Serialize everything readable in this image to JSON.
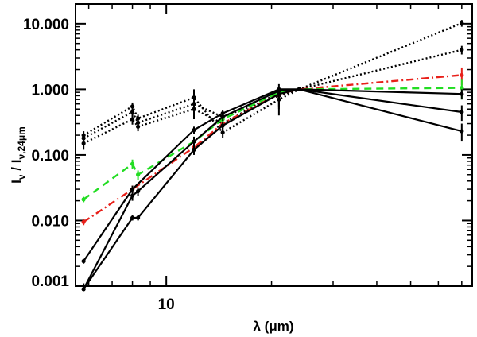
{
  "chart_data": {
    "type": "line",
    "xscale": "log",
    "yscale": "log",
    "xlim": [
      5.5,
      75
    ],
    "ylim": [
      0.001,
      20
    ],
    "xticks": [
      {
        "value": 10,
        "label": "10"
      }
    ],
    "yticks": [
      {
        "value": 0.001,
        "label": "0.001"
      },
      {
        "value": 0.01,
        "label": "0.010"
      },
      {
        "value": 0.1,
        "label": "0.100"
      },
      {
        "value": 1,
        "label": "1.000"
      },
      {
        "value": 10,
        "label": "10.000"
      }
    ],
    "xlabel": "λ (μm)",
    "ylabel": {
      "main": "I",
      "main_sub": "ν",
      "sep": " / I",
      "denom_sub": "ν,24μm"
    },
    "series": [
      {
        "name": "dotted-1",
        "style": "dotted",
        "color": "#000000",
        "x": [
          5.8,
          8.0,
          8.3,
          12.0,
          14.5,
          21.0,
          24.0,
          70.0
        ],
        "y": [
          0.2,
          0.55,
          0.36,
          0.75,
          0.22,
          0.7,
          1.0,
          10.2
        ],
        "err": [
          0.03,
          0.08,
          0.05,
          0.25,
          0.04,
          0.3,
          0.0,
          1.2
        ]
      },
      {
        "name": "dotted-2",
        "style": "dotted",
        "color": "#000000",
        "x": [
          5.8,
          8.0,
          8.3,
          12.0,
          14.5,
          21.0,
          24.0,
          70.0
        ],
        "y": [
          0.18,
          0.45,
          0.31,
          0.6,
          0.38,
          0.8,
          1.0,
          4.0
        ],
        "err": [
          0.03,
          0.07,
          0.05,
          0.2,
          0.06,
          0.25,
          0.0,
          0.6
        ]
      },
      {
        "name": "dotted-3",
        "style": "dotted",
        "color": "#000000",
        "x": [
          5.8,
          8.0,
          8.3,
          12.0,
          14.5,
          21.0,
          24.0
        ],
        "y": [
          0.15,
          0.35,
          0.27,
          0.5,
          0.3,
          0.9,
          1.0
        ],
        "err": [
          0.03,
          0.06,
          0.04,
          0.15,
          0.05,
          0.2,
          0.0
        ]
      },
      {
        "name": "red-dashdot",
        "style": "dashdot",
        "color": "#e8201a",
        "x": [
          5.8,
          8.0,
          12.0,
          14.5,
          21.0,
          24.0,
          70.0
        ],
        "y": [
          0.0095,
          0.03,
          0.13,
          0.3,
          0.85,
          1.0,
          1.65
        ],
        "err": [
          0.001,
          0.004,
          0.02,
          0.04,
          0.1,
          0.0,
          0.5
        ]
      },
      {
        "name": "green-dashed",
        "style": "dashed",
        "color": "#22dd22",
        "x": [
          5.8,
          8.0,
          8.3,
          12.0,
          14.5,
          21.0,
          24.0,
          70.0
        ],
        "y": [
          0.021,
          0.073,
          0.05,
          0.16,
          0.35,
          0.9,
          1.0,
          1.05
        ],
        "err": [
          0.002,
          0.012,
          0.008,
          0.03,
          0.05,
          0.1,
          0.0,
          0.35
        ]
      },
      {
        "name": "solid-1",
        "style": "solid",
        "color": "#000000",
        "x": [
          5.8,
          8.0,
          12.0,
          14.5,
          21.0,
          24.0,
          70.0
        ],
        "y": [
          0.0024,
          0.03,
          0.24,
          0.43,
          1.0,
          1.0,
          0.85
        ],
        "err": [
          0.0002,
          0.004,
          0.03,
          0.05,
          0.1,
          0.0,
          0.15
        ]
      },
      {
        "name": "solid-2",
        "style": "solid",
        "color": "#000000",
        "x": [
          5.8,
          8.0,
          8.3,
          12.0,
          14.5,
          21.0,
          24.0,
          70.0
        ],
        "y": [
          0.0009,
          0.024,
          0.028,
          0.16,
          0.38,
          0.95,
          1.0,
          0.45
        ],
        "err": [
          0.0002,
          0.004,
          0.004,
          0.03,
          0.05,
          0.12,
          0.0,
          0.12
        ]
      },
      {
        "name": "solid-3",
        "style": "solid",
        "color": "#000000",
        "x": [
          5.8,
          8.0,
          8.3,
          12.0,
          14.5,
          21.0,
          24.0,
          70.0
        ],
        "y": [
          0.0009,
          0.011,
          0.011,
          0.12,
          0.28,
          0.85,
          1.0,
          0.23
        ],
        "err": [
          0.0002,
          0.001,
          0.001,
          0.02,
          0.04,
          0.35,
          0.0,
          0.07
        ]
      }
    ]
  }
}
